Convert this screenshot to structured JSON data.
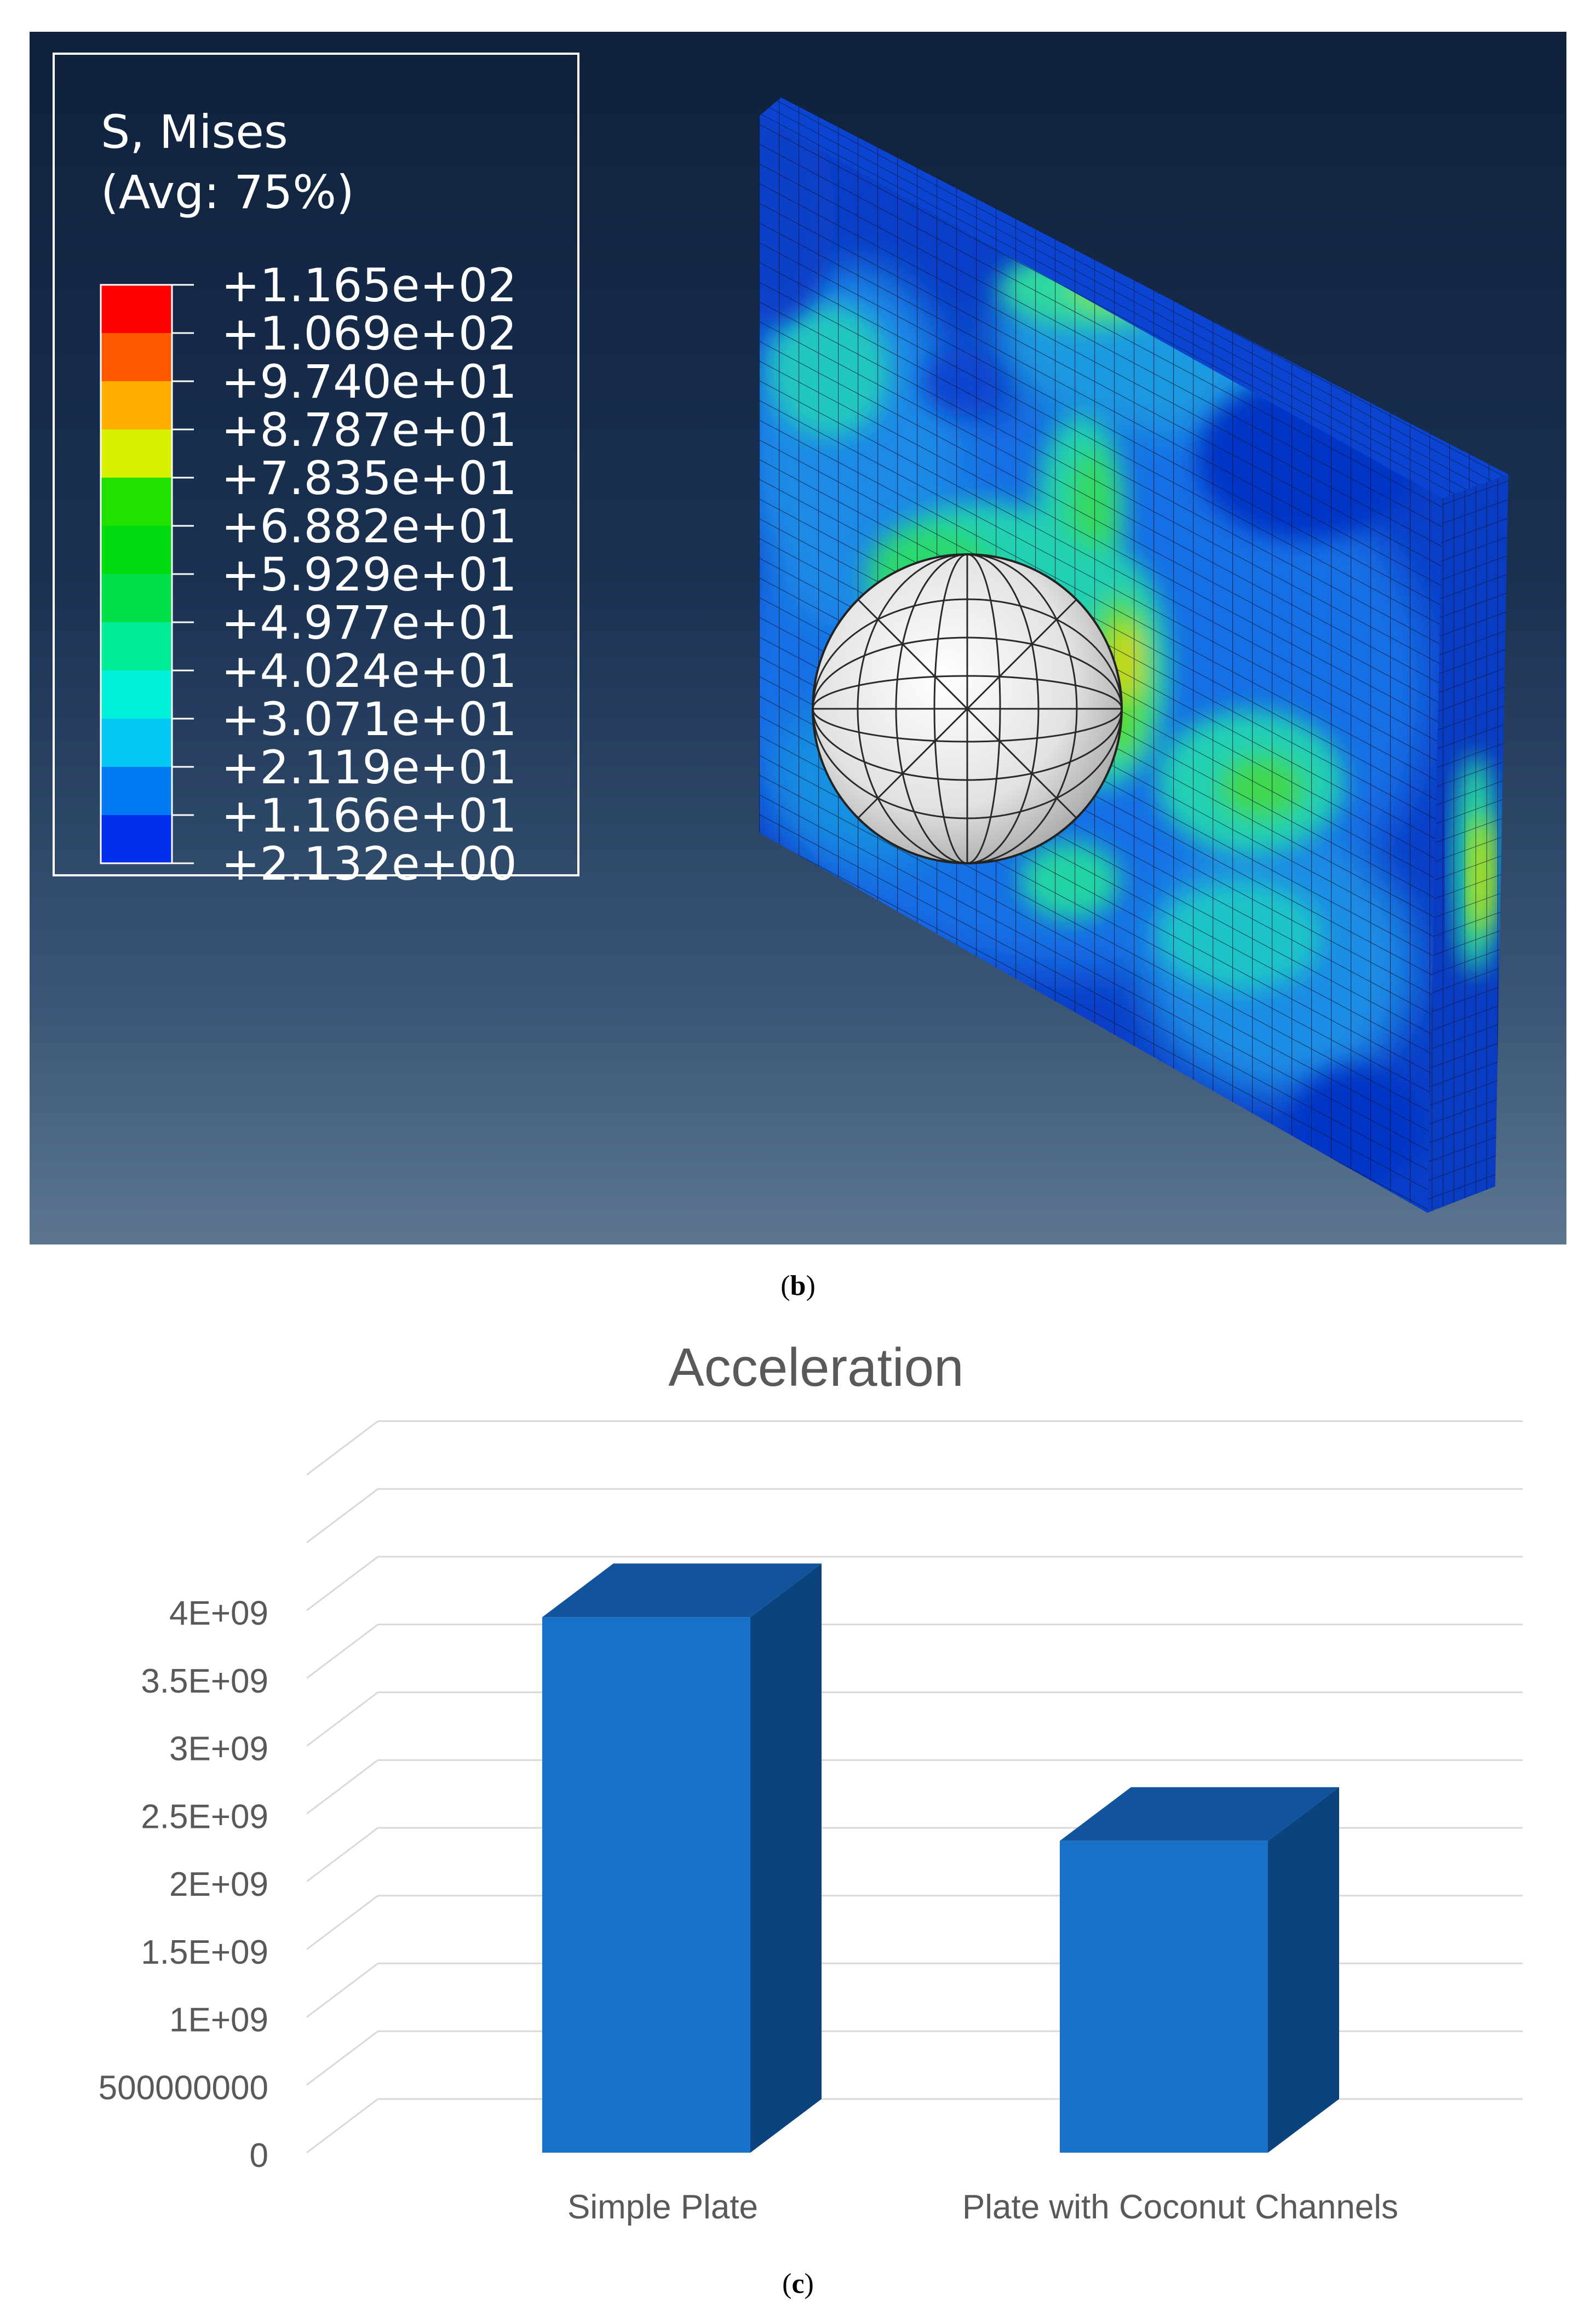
{
  "fea_panel": {
    "caption_letter": "b",
    "legend": {
      "title_line1": "S, Mises",
      "title_line2": "(Avg: 75%)",
      "labels": [
        "+1.165e+02",
        "+1.069e+02",
        "+9.740e+01",
        "+8.787e+01",
        "+7.835e+01",
        "+6.882e+01",
        "+5.929e+01",
        "+4.977e+01",
        "+4.024e+01",
        "+3.071e+01",
        "+2.119e+01",
        "+1.166e+01",
        "+2.132e+00"
      ],
      "colors": [
        "#ff0000",
        "#ff5a00",
        "#ffae00",
        "#d8f000",
        "#20e000",
        "#00dc10",
        "#00e04a",
        "#00ec98",
        "#00f0d8",
        "#00c8f0",
        "#0078f0",
        "#0030ee"
      ]
    },
    "colors": {
      "background_top": "#0f213b",
      "background_bottom": "#5c7690",
      "plate_base": "#0a3ec8",
      "impactor": "#d8d8d8"
    }
  },
  "chart_panel": {
    "caption_letter": "c"
  },
  "chart_data": {
    "type": "bar",
    "title": "Acceleration",
    "categories": [
      "Simple Plate",
      "Plate with Coconut Channels"
    ],
    "values": [
      3950000000,
      2300000000
    ],
    "ylim": [
      0,
      4000000000
    ],
    "yticks": [
      0,
      500000000,
      1000000000,
      1500000000,
      2000000000,
      2500000000,
      3000000000,
      3500000000,
      4000000000
    ],
    "ytick_labels": [
      "0",
      "500000000",
      "1E+09",
      "1.5E+09",
      "2E+09",
      "2.5E+09",
      "3E+09",
      "3.5E+09",
      "4E+09"
    ],
    "xlabel": "",
    "ylabel": "",
    "grid": true,
    "style": "3d-column",
    "colors": {
      "bar_front": "#1871c9",
      "bar_top": "#12549c",
      "bar_side": "#0b437f",
      "grid": "#d9d9d9",
      "title": "#595959",
      "labels": "#595959"
    }
  }
}
